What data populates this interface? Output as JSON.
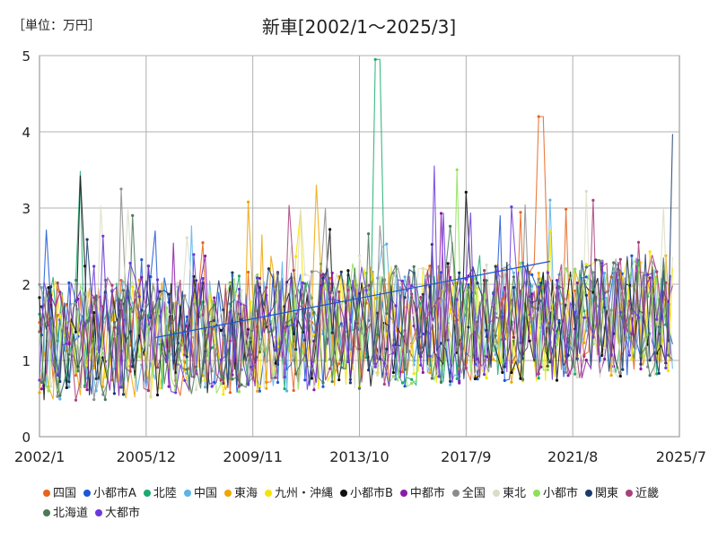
{
  "chart_data": {
    "type": "line",
    "unit_label": "［単位：万円］",
    "title": "新車[2002/1～2025/3]",
    "x_range": [
      "2002/1",
      "2025/7"
    ],
    "x_tick_labels": [
      "2002/1",
      "2005/12",
      "2009/11",
      "2013/10",
      "2017/9",
      "2021/8",
      "2025/7"
    ],
    "ylim": [
      0,
      5
    ],
    "y_ticks": [
      0,
      1,
      2,
      3,
      4,
      5
    ],
    "grid": true,
    "legend_position": "bottom",
    "trendline": {
      "start": [
        "2006/4",
        1.3
      ],
      "end": [
        "2020/10",
        2.3
      ],
      "color": "#1a56d6"
    },
    "series": [
      {
        "name": "四国",
        "color": "#e8641c",
        "peak": [
          "2020/6",
          4.2
        ]
      },
      {
        "name": "小都市A",
        "color": "#1a56d6"
      },
      {
        "name": "北陸",
        "color": "#1aab6e",
        "peak": [
          "2014/6",
          4.95
        ]
      },
      {
        "name": "中国",
        "color": "#5ab4e8"
      },
      {
        "name": "東海",
        "color": "#f0a500"
      },
      {
        "name": "九州・沖縄",
        "color": "#f5e400"
      },
      {
        "name": "小都市B",
        "color": "#111111"
      },
      {
        "name": "中都市",
        "color": "#8b1aa8"
      },
      {
        "name": "全国",
        "color": "#8c8c8c"
      },
      {
        "name": "東北",
        "color": "#dcdcc8"
      },
      {
        "name": "小都市",
        "color": "#8ee05a"
      },
      {
        "name": "関東",
        "color": "#1a3a6e"
      },
      {
        "name": "近畿",
        "color": "#a8407a"
      },
      {
        "name": "北海道",
        "color": "#4a7a5a"
      },
      {
        "name": "大都市",
        "color": "#6a3adc"
      }
    ]
  }
}
